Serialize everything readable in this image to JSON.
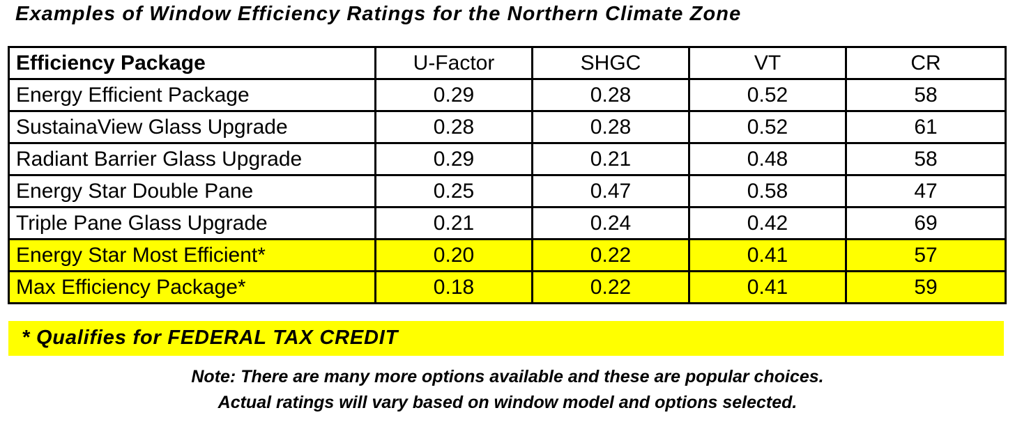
{
  "title": "Examples of Window Efficiency Ratings for the Northern Climate Zone",
  "table": {
    "headers": [
      "Efficiency Package",
      "U-Factor",
      "SHGC",
      "VT",
      "CR"
    ],
    "rows": [
      {
        "name": "Energy Efficient Package",
        "u_factor": "0.29",
        "shgc": "0.28",
        "vt": "0.52",
        "cr": "58",
        "highlighted": false
      },
      {
        "name": "SustainaView Glass Upgrade",
        "u_factor": "0.28",
        "shgc": "0.28",
        "vt": "0.52",
        "cr": "61",
        "highlighted": false
      },
      {
        "name": "Radiant Barrier Glass Upgrade",
        "u_factor": "0.29",
        "shgc": "0.21",
        "vt": "0.48",
        "cr": "58",
        "highlighted": false
      },
      {
        "name": "Energy Star Double Pane",
        "u_factor": "0.25",
        "shgc": "0.47",
        "vt": "0.58",
        "cr": "47",
        "highlighted": false
      },
      {
        "name": "Triple Pane Glass Upgrade",
        "u_factor": "0.21",
        "shgc": "0.24",
        "vt": "0.42",
        "cr": "69",
        "highlighted": false
      },
      {
        "name": "Energy Star Most Efficient*",
        "u_factor": "0.20",
        "shgc": "0.22",
        "vt": "0.41",
        "cr": "57",
        "highlighted": true
      },
      {
        "name": "Max Efficiency Package*",
        "u_factor": "0.18",
        "shgc": "0.22",
        "vt": "0.41",
        "cr": "59",
        "highlighted": true
      }
    ]
  },
  "footer": "* Qualifies for FEDERAL TAX CREDIT",
  "notes": [
    "Note: There are many more options available and these are popular choices.",
    "Actual ratings will vary based on window model and options selected."
  ],
  "colors": {
    "highlight": "#ffff00",
    "border": "#000000"
  }
}
